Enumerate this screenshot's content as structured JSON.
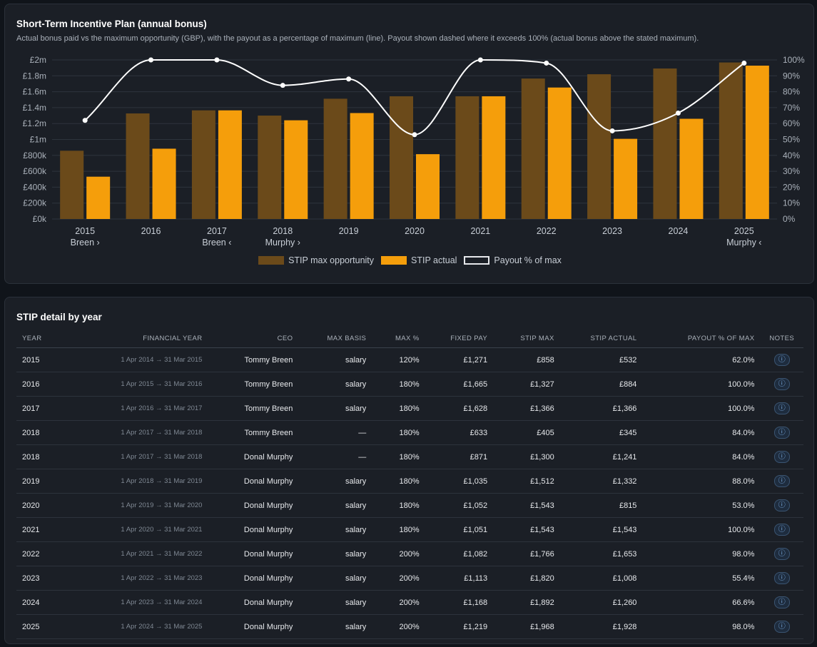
{
  "chart_card": {
    "title": "Short-Term Incentive Plan (annual bonus)",
    "subtitle": "Actual bonus paid vs the maximum opportunity (GBP), with the payout as a percentage of maximum (line). Payout shown dashed where it exceeds 100% (actual bonus above the stated maximum)."
  },
  "chart_data": {
    "type": "bar",
    "categories": [
      "2015",
      "2016",
      "2017",
      "2018",
      "2019",
      "2020",
      "2021",
      "2022",
      "2023",
      "2024",
      "2025"
    ],
    "category_sublabels": [
      "Breen ›",
      "",
      "Breen ‹",
      "Murphy ›",
      "",
      "",
      "",
      "",
      "",
      "",
      "Murphy ‹"
    ],
    "series": [
      {
        "name": "STIP max opportunity",
        "values": [
          858000,
          1327000,
          1366000,
          1300000,
          1512000,
          1543000,
          1543000,
          1766000,
          1820000,
          1892000,
          1968000
        ],
        "color": "#6b4a1a"
      },
      {
        "name": "STIP actual",
        "values": [
          532000,
          884000,
          1366000,
          1241000,
          1332000,
          815000,
          1543000,
          1653000,
          1008000,
          1260000,
          1928000
        ],
        "color": "#f59e0b"
      },
      {
        "name": "Payout % of max",
        "type": "line",
        "axis": "right",
        "values": [
          62.0,
          100.0,
          100.0,
          84.0,
          88.0,
          53.0,
          100.0,
          98.0,
          55.4,
          66.6,
          98.0
        ],
        "color": "#ffffff"
      }
    ],
    "y_left": {
      "range": [
        0,
        2000000
      ],
      "ticks": [
        0,
        200000,
        400000,
        600000,
        800000,
        1000000,
        1200000,
        1400000,
        1600000,
        1800000,
        2000000
      ],
      "tick_labels": [
        "£0k",
        "£200k",
        "£400k",
        "£600k",
        "£800k",
        "£1m",
        "£1.2m",
        "£1.4m",
        "£1.6m",
        "£1.8m",
        "£2m"
      ]
    },
    "y_right": {
      "range": [
        0,
        100
      ],
      "ticks": [
        0,
        10,
        20,
        30,
        40,
        50,
        60,
        70,
        80,
        90,
        100
      ],
      "tick_labels": [
        "0%",
        "10%",
        "20%",
        "30%",
        "40%",
        "50%",
        "60%",
        "70%",
        "80%",
        "90%",
        "100%"
      ]
    },
    "grid": true,
    "legend": "bottom-center"
  },
  "table_card": {
    "title": "STIP detail by year",
    "columns": [
      "Year",
      "Financial year",
      "CEO",
      "Max basis",
      "Max %",
      "Fixed pay",
      "STIP max",
      "STIP actual",
      "Payout % of max",
      "Notes"
    ],
    "notes_icon": "info-icon",
    "rows": [
      {
        "year": "2015",
        "fy": "1 Apr 2014 → 31 Mar 2015",
        "ceo": "Tommy Breen",
        "basis": "salary",
        "maxpct": "120%",
        "fixed": "£1,271",
        "max": "£858",
        "actual": "£532",
        "payout": "62.0%",
        "note": "ⓘ"
      },
      {
        "year": "2016",
        "fy": "1 Apr 2015 → 31 Mar 2016",
        "ceo": "Tommy Breen",
        "basis": "salary",
        "maxpct": "180%",
        "fixed": "£1,665",
        "max": "£1,327",
        "actual": "£884",
        "payout": "100.0%",
        "note": "ⓘ"
      },
      {
        "year": "2017",
        "fy": "1 Apr 2016 → 31 Mar 2017",
        "ceo": "Tommy Breen",
        "basis": "salary",
        "maxpct": "180%",
        "fixed": "£1,628",
        "max": "£1,366",
        "actual": "£1,366",
        "payout": "100.0%",
        "note": "ⓘ"
      },
      {
        "year": "2018",
        "fy": "1 Apr 2017 → 31 Mar 2018",
        "ceo": "Tommy Breen",
        "basis": "—",
        "maxpct": "180%",
        "fixed": "£633",
        "max": "£405",
        "actual": "£345",
        "payout": "84.0%",
        "note": "ⓘ"
      },
      {
        "year": "2018",
        "fy": "1 Apr 2017 → 31 Mar 2018",
        "ceo": "Donal Murphy",
        "basis": "—",
        "maxpct": "180%",
        "fixed": "£871",
        "max": "£1,300",
        "actual": "£1,241",
        "payout": "84.0%",
        "note": "ⓘ"
      },
      {
        "year": "2019",
        "fy": "1 Apr 2018 → 31 Mar 2019",
        "ceo": "Donal Murphy",
        "basis": "salary",
        "maxpct": "180%",
        "fixed": "£1,035",
        "max": "£1,512",
        "actual": "£1,332",
        "payout": "88.0%",
        "note": "ⓘ"
      },
      {
        "year": "2020",
        "fy": "1 Apr 2019 → 31 Mar 2020",
        "ceo": "Donal Murphy",
        "basis": "salary",
        "maxpct": "180%",
        "fixed": "£1,052",
        "max": "£1,543",
        "actual": "£815",
        "payout": "53.0%",
        "note": "ⓘ"
      },
      {
        "year": "2021",
        "fy": "1 Apr 2020 → 31 Mar 2021",
        "ceo": "Donal Murphy",
        "basis": "salary",
        "maxpct": "180%",
        "fixed": "£1,051",
        "max": "£1,543",
        "actual": "£1,543",
        "payout": "100.0%",
        "note": "ⓘ"
      },
      {
        "year": "2022",
        "fy": "1 Apr 2021 → 31 Mar 2022",
        "ceo": "Donal Murphy",
        "basis": "salary",
        "maxpct": "200%",
        "fixed": "£1,082",
        "max": "£1,766",
        "actual": "£1,653",
        "payout": "98.0%",
        "note": "ⓘ"
      },
      {
        "year": "2023",
        "fy": "1 Apr 2022 → 31 Mar 2023",
        "ceo": "Donal Murphy",
        "basis": "salary",
        "maxpct": "200%",
        "fixed": "£1,113",
        "max": "£1,820",
        "actual": "£1,008",
        "payout": "55.4%",
        "note": "ⓘ"
      },
      {
        "year": "2024",
        "fy": "1 Apr 2023 → 31 Mar 2024",
        "ceo": "Donal Murphy",
        "basis": "salary",
        "maxpct": "200%",
        "fixed": "£1,168",
        "max": "£1,892",
        "actual": "£1,260",
        "payout": "66.6%",
        "note": "ⓘ"
      },
      {
        "year": "2025",
        "fy": "1 Apr 2024 → 31 Mar 2025",
        "ceo": "Donal Murphy",
        "basis": "salary",
        "maxpct": "200%",
        "fixed": "£1,219",
        "max": "£1,968",
        "actual": "£1,928",
        "payout": "98.0%",
        "note": "ⓘ"
      }
    ]
  }
}
